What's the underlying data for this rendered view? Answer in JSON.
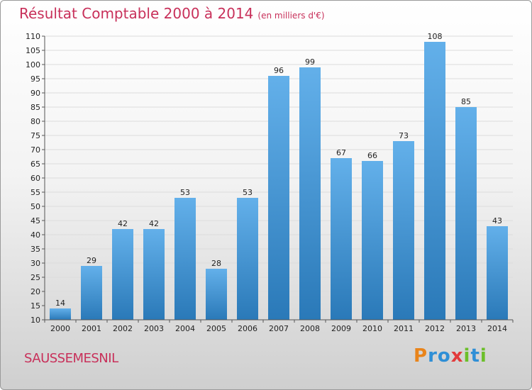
{
  "title": "Résultat Comptable 2000 à 2014",
  "subtitle": "(en milliers d'€)",
  "commune": "SAUSSEMESNIL",
  "logo": {
    "letters": [
      "P",
      "r",
      "o",
      "x",
      "i",
      "t",
      "i"
    ],
    "colors": [
      "#e9841a",
      "#2f8fd6",
      "#2f8fd6",
      "#e23b3b",
      "#6cbf2a",
      "#2f8fd6",
      "#6cbf2a"
    ]
  },
  "colors": {
    "title": "#c8305a",
    "bar_top": "#63b0ea",
    "bar_bottom": "#2a79b8"
  },
  "chart_data": {
    "type": "bar",
    "categories": [
      "2000",
      "2001",
      "2002",
      "2003",
      "2004",
      "2005",
      "2006",
      "2007",
      "2008",
      "2009",
      "2010",
      "2011",
      "2012",
      "2013",
      "2014"
    ],
    "values": [
      14,
      29,
      42,
      42,
      53,
      28,
      53,
      96,
      99,
      67,
      66,
      73,
      108,
      85,
      43
    ],
    "ylim": [
      10,
      110
    ],
    "yticks": [
      10,
      15,
      20,
      25,
      30,
      35,
      40,
      45,
      50,
      55,
      60,
      65,
      70,
      75,
      80,
      85,
      90,
      95,
      100,
      105,
      110
    ],
    "grid": true
  }
}
